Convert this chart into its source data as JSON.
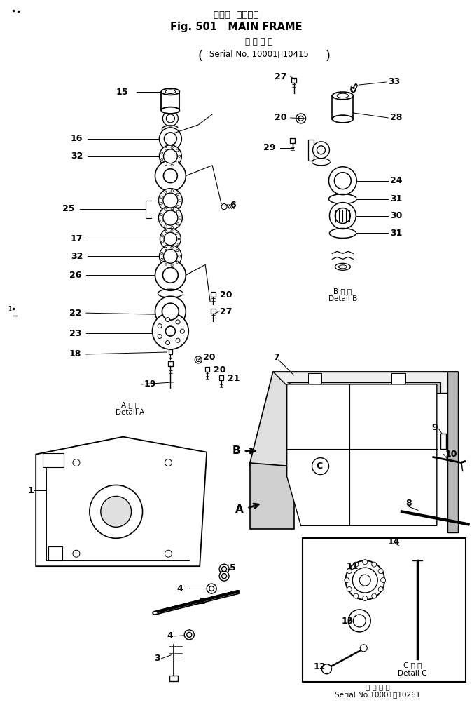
{
  "title_japanese": "メイン  フレーム",
  "title_english": "Fig. 501   MAIN FRAME",
  "serial_japanese": "適 用 号 機",
  "serial_number": "(Serial No. 10001～10415)",
  "serial_bottom_japanese": "適 用 号 機",
  "serial_bottom_number": "Serial No.10001～10261",
  "detail_a_japanese": "A 詳 細",
  "detail_a_english": "Detail A",
  "detail_b_japanese": "B 詳 細",
  "detail_b_english": "Detail B",
  "detail_c_japanese": "C 詳 細",
  "detail_c_english": "Detail C",
  "bg_color": "#ffffff",
  "line_color": "#000000",
  "fig_width": 6.74,
  "fig_height": 10.05,
  "dpi": 100
}
